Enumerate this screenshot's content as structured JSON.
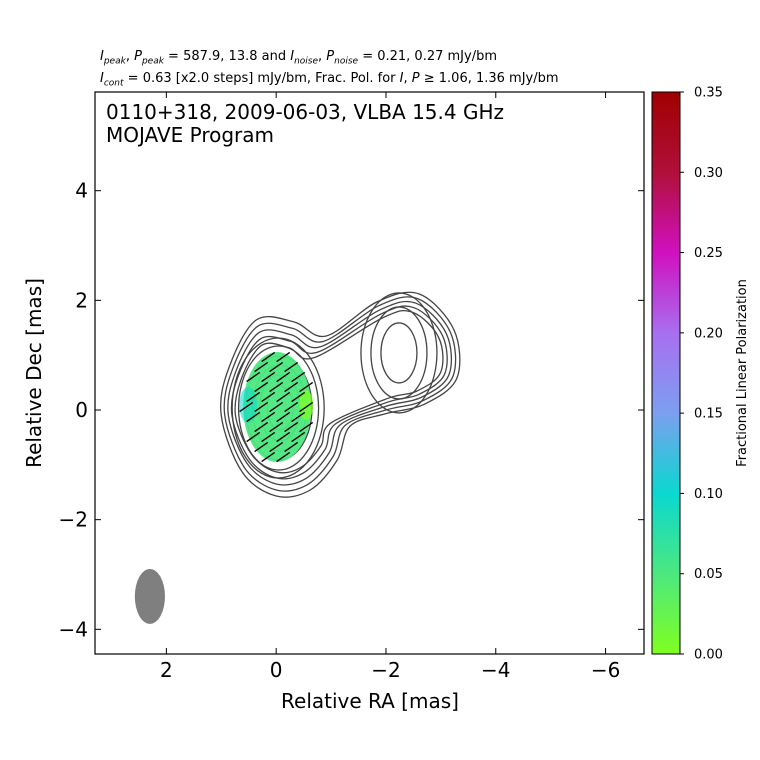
{
  "header": {
    "line1": {
      "i_label": "I",
      "i_sub": "peak",
      "p_label": "P",
      "p_sub": "peak",
      "mid": " = 587.9, 13.8 and ",
      "i2_label": "I",
      "i2_sub": "noise",
      "p2_label": "P",
      "p2_sub": "noise",
      "end": " = 0.21, 0.27 mJy/bm"
    },
    "line2": {
      "i_label": "I",
      "i_sub": "cont",
      "mid": " = 0.63 [x2.0 steps] mJy/bm, Frac. Pol. for ",
      "i2_label": "I",
      "p_label": "P",
      "end": " ≥ 1.06, 1.36 mJy/bm"
    }
  },
  "chart_data": {
    "type": "heatmap",
    "title_line1": "0110+318, 2009-06-03, VLBA 15.4 GHz",
    "title_line2": "MOJAVE Program",
    "xlabel": "Relative RA [mas]",
    "ylabel": "Relative Dec [mas]",
    "xlim": [
      3.3,
      -6.7
    ],
    "ylim": [
      -4.45,
      5.8
    ],
    "xticks": [
      2,
      0,
      -2,
      -4,
      -6
    ],
    "xtick_labels": [
      "2",
      "0",
      "−2",
      "−4",
      "−6"
    ],
    "yticks": [
      -4,
      -2,
      0,
      2,
      4
    ],
    "ytick_labels": [
      "−4",
      "−2",
      "0",
      "2",
      "4"
    ],
    "colorbar": {
      "label": "Fractional Linear Polarization",
      "range": [
        0.0,
        0.35
      ],
      "ticks": [
        0.0,
        0.05,
        0.1,
        0.15,
        0.2,
        0.25,
        0.3,
        0.35
      ],
      "tick_labels": [
        "0.00",
        "0.05",
        "0.10",
        "0.15",
        "0.20",
        "0.25",
        "0.30",
        "0.35"
      ],
      "stops": [
        "#80ff20",
        "#4ce87f",
        "#0ad8d0",
        "#7c9ff0",
        "#a86ff0",
        "#d010c0",
        "#b0103a",
        "#a00000"
      ]
    },
    "core": {
      "ra": 0.0,
      "dec": 0.0
    },
    "jet_component": {
      "ra": -2.2,
      "dec": 0.95
    },
    "contour_levels_mJy": [
      0.63,
      1.26,
      2.52,
      5.04,
      10.08,
      20.16,
      40.32,
      80.64
    ],
    "beam": {
      "ra": 2.3,
      "dec": -3.4,
      "major_mas": 1.0,
      "minor_mas": 0.55,
      "pa_deg": 0
    },
    "pol_region": {
      "ra": 0.0,
      "dec": 0.0,
      "frac_pol": 0.05
    },
    "evpa_angle_deg": 35,
    "colors": {
      "contour": "#444444",
      "beam": "#7f7f7f",
      "vector": "#000000"
    }
  }
}
